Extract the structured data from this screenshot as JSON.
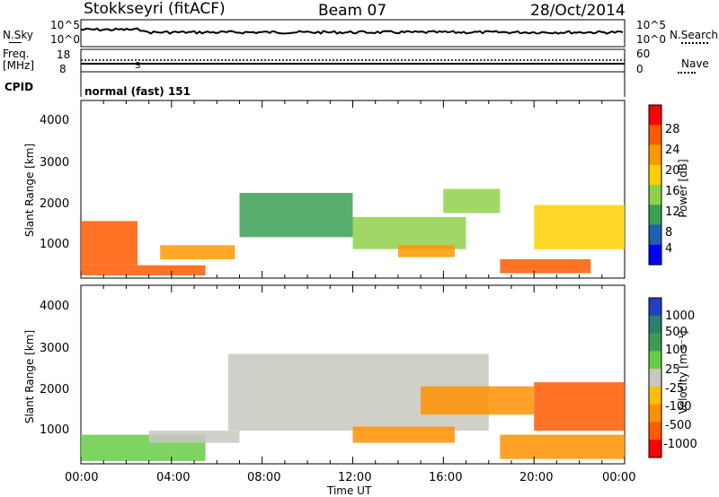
{
  "header": {
    "station": "Stokkseyri (fitACF)",
    "beam": "Beam 07",
    "date": "28/Oct/2014"
  },
  "top_panels": {
    "nsky_label": "N.Sky",
    "nsky_ticks": [
      "10^5",
      "10^0"
    ],
    "nsearch_label": "N.Search",
    "nsearch_ticks": [
      "10^5",
      "10^0"
    ],
    "freq_label": "Freq.",
    "freq_unit": "[MHz]",
    "freq_ticks": [
      "18",
      "8"
    ],
    "nave_label": "Nave",
    "nave_ticks": [
      "60",
      "0"
    ],
    "cpid_label": "CPID",
    "cpid_value": "normal (fast) 151"
  },
  "axes": {
    "y_label": "Slant Range [km]",
    "y_ticks": [
      "4000",
      "3000",
      "2000",
      "1000"
    ],
    "x_label": "Time UT",
    "x_ticks": [
      "00:00",
      "04:00",
      "08:00",
      "12:00",
      "16:00",
      "20:00",
      "00:00"
    ]
  },
  "power_colorbar": {
    "label": "Power [dB]",
    "ticks": [
      "28",
      "24",
      "20",
      "16",
      "12",
      "8",
      "4"
    ],
    "colors": [
      "#ff0000",
      "#ff5a00",
      "#ff9800",
      "#ffd000",
      "#8fd04a",
      "#3aa055",
      "#2060b0",
      "#0000ff"
    ]
  },
  "velocity_colorbar": {
    "label": "Velocity [m s⁻¹]",
    "ticks": [
      "1000",
      "500",
      "100",
      "25",
      "-25",
      "-100",
      "-500",
      "-1000"
    ],
    "colors": [
      "#2040c0",
      "#2e7d6e",
      "#3c9a55",
      "#66cc44",
      "#c8c8c0",
      "#ffc000",
      "#ff9000",
      "#ff5a00",
      "#ff0000"
    ]
  },
  "chart_data": [
    {
      "type": "heatmap",
      "title": "Power",
      "xlabel": "Time UT",
      "ylabel": "Slant Range [km]",
      "xlim": [
        0,
        24
      ],
      "ylim": [
        180,
        4600
      ],
      "colorbar_range": [
        0,
        30
      ],
      "regions": [
        {
          "t0": 0.0,
          "t1": 2.5,
          "r0": 500,
          "r1": 1600,
          "value": 26
        },
        {
          "t0": 0.0,
          "t1": 5.5,
          "r0": 250,
          "r1": 500,
          "value": 24
        },
        {
          "t0": 3.5,
          "t1": 6.8,
          "r0": 650,
          "r1": 1000,
          "value": 22
        },
        {
          "t0": 7.0,
          "t1": 12.0,
          "r0": 1200,
          "r1": 2300,
          "value": 10
        },
        {
          "t0": 12.0,
          "t1": 17.0,
          "r0": 900,
          "r1": 1700,
          "value": 12
        },
        {
          "t0": 14.0,
          "t1": 16.5,
          "r0": 700,
          "r1": 1000,
          "value": 22
        },
        {
          "t0": 16.0,
          "t1": 18.5,
          "r0": 1800,
          "r1": 2400,
          "value": 14
        },
        {
          "t0": 18.5,
          "t1": 22.5,
          "r0": 300,
          "r1": 650,
          "value": 26
        },
        {
          "t0": 20.0,
          "t1": 24.0,
          "r0": 900,
          "r1": 2000,
          "value": 16
        }
      ]
    },
    {
      "type": "heatmap",
      "title": "Velocity",
      "xlabel": "Time UT",
      "ylabel": "Slant Range [km]",
      "xlim": [
        0,
        24
      ],
      "ylim": [
        180,
        4600
      ],
      "colorbar_range": [
        -1000,
        1000
      ],
      "regions": [
        {
          "t0": 0.0,
          "t1": 5.5,
          "r0": 250,
          "r1": 900,
          "value": 80
        },
        {
          "t0": 3.0,
          "t1": 7.0,
          "r0": 700,
          "r1": 1000,
          "value": 0
        },
        {
          "t0": 6.5,
          "t1": 18.0,
          "r0": 1000,
          "r1": 2900,
          "value": 0
        },
        {
          "t0": 12.0,
          "t1": 16.5,
          "r0": 700,
          "r1": 1100,
          "value": -300
        },
        {
          "t0": 15.0,
          "t1": 20.0,
          "r0": 1400,
          "r1": 2100,
          "value": -200
        },
        {
          "t0": 18.5,
          "t1": 24.0,
          "r0": 300,
          "r1": 900,
          "value": -250
        },
        {
          "t0": 20.0,
          "t1": 24.0,
          "r0": 1000,
          "r1": 2200,
          "value": -600
        }
      ]
    }
  ]
}
